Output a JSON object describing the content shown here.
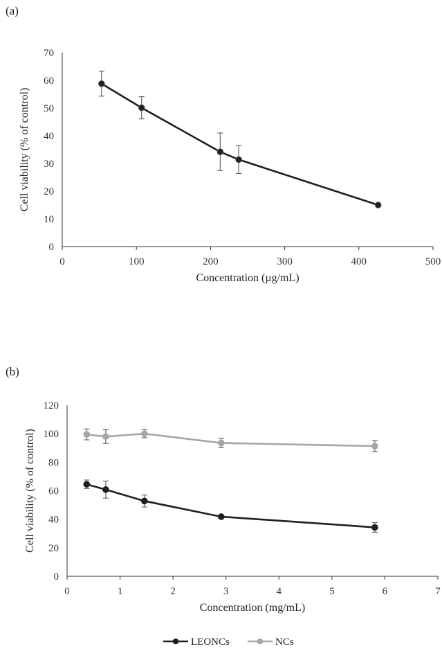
{
  "panels": {
    "a_label": "(a)",
    "b_label": "(b)"
  },
  "colors": {
    "dark_series": "#1f1f1f",
    "light_series": "#a6a6a6",
    "error_bar": "#666666",
    "axis": "#333333"
  },
  "chart_data": [
    {
      "type": "line",
      "panel": "(a)",
      "xlabel": "Concentration (µg/mL)",
      "ylabel": "Cell viability (% of control)",
      "xlim": [
        0,
        500
      ],
      "ylim": [
        0,
        70
      ],
      "xticks": [
        0,
        100,
        200,
        300,
        400,
        500
      ],
      "yticks": [
        0,
        10,
        20,
        30,
        40,
        50,
        60,
        70
      ],
      "grid": false,
      "series": [
        {
          "color": "#1f1f1f",
          "x": [
            53,
            107,
            213,
            238,
            426
          ],
          "y": [
            58.8,
            50.1,
            34.2,
            31.4,
            15.0
          ],
          "err": [
            4.5,
            4.0,
            6.8,
            5.0,
            0
          ]
        }
      ]
    },
    {
      "type": "line",
      "panel": "(b)",
      "xlabel": "Concentration (mg/mL)",
      "ylabel": "Cell viability (% of control)",
      "xlim": [
        0,
        7
      ],
      "ylim": [
        0,
        120
      ],
      "xticks": [
        0,
        1,
        2,
        3,
        4,
        5,
        6,
        7
      ],
      "yticks": [
        0,
        20,
        40,
        60,
        80,
        100,
        120
      ],
      "grid": false,
      "legend": "bottom",
      "series": [
        {
          "name": "LEONCs",
          "color": "#1f1f1f",
          "x": [
            0.37,
            0.73,
            1.46,
            2.91,
            5.81
          ],
          "y": [
            64.5,
            60.8,
            52.8,
            41.8,
            34.3
          ],
          "err": [
            3.0,
            6.0,
            4.2,
            0,
            3.4
          ]
        },
        {
          "name": "NCs",
          "color": "#a6a6a6",
          "x": [
            0.37,
            0.73,
            1.46,
            2.91,
            5.81
          ],
          "y": [
            99.5,
            98.0,
            100.0,
            93.5,
            91.3
          ],
          "err": [
            3.8,
            4.8,
            2.8,
            3.2,
            3.8
          ]
        }
      ]
    }
  ]
}
